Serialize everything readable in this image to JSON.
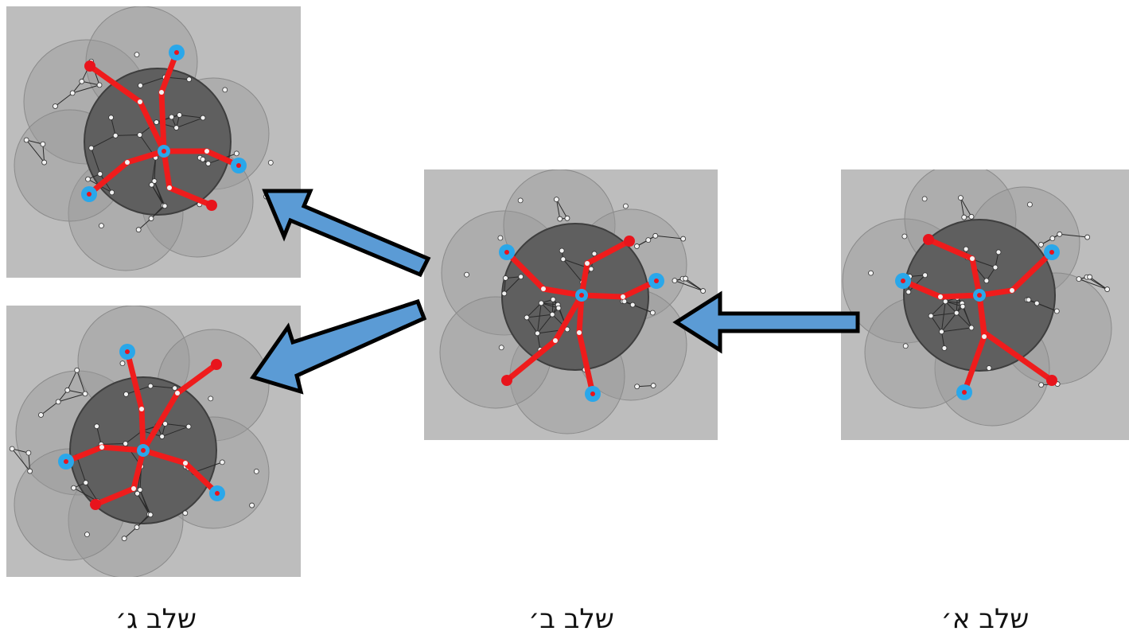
{
  "labels": {
    "stage_a": "שלב א׳",
    "stage_b": "שלב ב׳",
    "stage_c": "שלב ג׳"
  },
  "colors": {
    "panel_background": "#bdbdbd",
    "inner_disk": "#5f5f5f",
    "outer_disks": "#9a9a9a",
    "tree_edges": "#ef1c1c",
    "leaf_red": "#e8141c",
    "leaf_blue": "#2aa7ea",
    "arrow_fill": "#5b9bd5",
    "arrow_stroke": "#000000"
  }
}
